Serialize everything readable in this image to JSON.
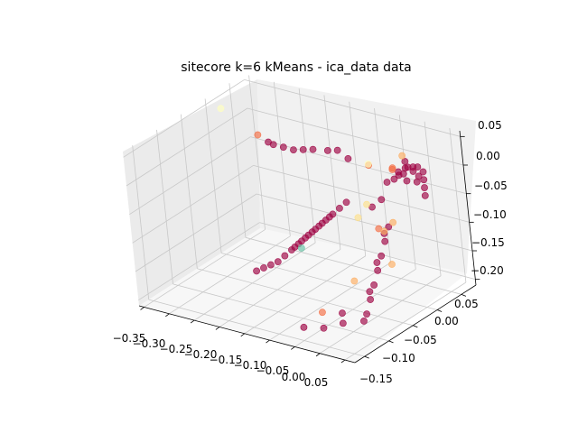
{
  "chart_data": {
    "type": "scatter",
    "title": "sitecore k=6 kMeans - ica_data data",
    "axes": {
      "x": {
        "ticks": [
          "−0.35",
          "−0.30",
          "−0.25",
          "−0.20",
          "−0.15",
          "−0.10",
          "−0.05",
          "0.00",
          "0.05"
        ],
        "range": [
          -0.36,
          0.07
        ]
      },
      "y": {
        "ticks": [
          "−0.15",
          "−0.10",
          "−0.05",
          "0.00",
          "0.05"
        ],
        "range": [
          -0.17,
          0.08
        ]
      },
      "z": {
        "ticks": [
          "−0.20",
          "−0.15",
          "−0.10",
          "−0.05",
          "0.00",
          "0.05"
        ],
        "range": [
          -0.21,
          0.06
        ]
      }
    },
    "grid": true,
    "projection": "3d",
    "colors": {
      "cluster_dark": "#9e0142",
      "cluster_orange": "#f46d43",
      "cluster_peach": "#fdae61",
      "cluster_yellow": "#fee08b",
      "cluster_pale": "#ffffbf",
      "cluster_teal": "#66c2a5"
    },
    "series": [
      {
        "cluster": 0,
        "color": "#9e0142",
        "points": [
          [
            -0.15,
            0.0,
            0.02
          ],
          [
            -0.17,
            0.0,
            0.015
          ],
          [
            -0.19,
            0.0,
            0.01
          ],
          [
            -0.21,
            0.0,
            0.01
          ],
          [
            -0.23,
            0.0,
            0.01
          ],
          [
            -0.24,
            0.0,
            0.012
          ],
          [
            -0.1,
            0.0,
            0.03
          ],
          [
            -0.12,
            0.0,
            0.025
          ],
          [
            -0.08,
            0.0,
            0.02
          ],
          [
            -0.04,
            -0.05,
            -0.02
          ],
          [
            -0.05,
            -0.055,
            -0.03
          ],
          [
            -0.06,
            -0.06,
            -0.04
          ],
          [
            -0.07,
            -0.065,
            -0.05
          ],
          [
            -0.08,
            -0.07,
            -0.06
          ],
          [
            -0.09,
            -0.075,
            -0.07
          ],
          [
            -0.1,
            -0.08,
            -0.08
          ],
          [
            -0.11,
            -0.085,
            -0.09
          ],
          [
            -0.12,
            -0.09,
            -0.1
          ],
          [
            -0.13,
            -0.095,
            -0.11
          ],
          [
            -0.14,
            -0.1,
            -0.12
          ],
          [
            -0.15,
            -0.105,
            -0.125
          ],
          [
            -0.16,
            -0.11,
            -0.13
          ],
          [
            -0.17,
            -0.115,
            -0.135
          ],
          [
            -0.065,
            -0.062,
            -0.045
          ],
          [
            -0.075,
            -0.068,
            -0.055
          ],
          [
            -0.085,
            -0.073,
            -0.065
          ],
          [
            -0.095,
            -0.078,
            -0.075
          ],
          [
            -0.105,
            -0.083,
            -0.085
          ],
          [
            -0.115,
            -0.088,
            -0.095
          ],
          [
            0.02,
            0.0,
            0.02
          ],
          [
            0.025,
            0.005,
            0.015
          ],
          [
            0.03,
            0.01,
            0.025
          ],
          [
            0.035,
            0.0,
            0.03
          ],
          [
            0.015,
            0.005,
            0.01
          ],
          [
            0.04,
            0.01,
            0.02
          ],
          [
            0.045,
            0.015,
            0.01
          ],
          [
            0.025,
            0.01,
            0.0
          ],
          [
            0.03,
            0.02,
            0.02
          ],
          [
            0.05,
            0.01,
            0.03
          ],
          [
            0.055,
            0.015,
            0.02
          ],
          [
            0.02,
            0.015,
            0.03
          ],
          [
            0.06,
            0.01,
            0.01
          ],
          [
            0.065,
            0.005,
            0.0
          ],
          [
            0.07,
            0.0,
            -0.01
          ],
          [
            0.035,
            0.02,
            -0.005
          ],
          [
            0.01,
            0.0,
            0.005
          ],
          [
            0.0,
            -0.005,
            0.0
          ],
          [
            0.02,
            -0.03,
            -0.06
          ],
          [
            0.02,
            -0.04,
            -0.08
          ],
          [
            0.02,
            -0.05,
            -0.1
          ],
          [
            0.02,
            -0.06,
            -0.12
          ],
          [
            0.02,
            -0.07,
            -0.14
          ],
          [
            0.02,
            -0.08,
            -0.16
          ],
          [
            0.02,
            -0.09,
            -0.18
          ],
          [
            0.015,
            -0.035,
            -0.07
          ],
          [
            0.015,
            -0.055,
            -0.11
          ],
          [
            0.015,
            -0.075,
            -0.15
          ],
          [
            0.018,
            -0.095,
            -0.19
          ],
          [
            -0.02,
            -0.1,
            -0.2
          ],
          [
            -0.05,
            -0.11,
            -0.21
          ],
          [
            -0.08,
            -0.12,
            -0.21
          ],
          [
            -0.03,
            -0.09,
            -0.19
          ],
          [
            -0.01,
            -0.01,
            -0.03
          ],
          [
            -0.02,
            -0.02,
            -0.04
          ]
        ]
      },
      {
        "cluster": 1,
        "color": "#f46d43",
        "points": [
          [
            -0.26,
            0.0,
            0.02
          ],
          [
            -0.05,
            0.01,
            0.01
          ],
          [
            -0.06,
            -0.1,
            -0.19
          ],
          [
            0.03,
            -0.02,
            0.04
          ],
          [
            0.04,
            -0.03,
            0.045
          ],
          [
            0.01,
            -0.04,
            -0.06
          ]
        ]
      },
      {
        "cluster": 2,
        "color": "#fdae61",
        "points": [
          [
            0.03,
            -0.03,
            -0.05
          ],
          [
            0.04,
            -0.05,
            -0.11
          ],
          [
            0.01,
            0.02,
            0.035
          ],
          [
            -0.03,
            -0.06,
            -0.15
          ],
          [
            0.01,
            -0.03,
            -0.07
          ]
        ]
      },
      {
        "cluster": 3,
        "color": "#fee08b",
        "points": [
          [
            -0.03,
            -0.04,
            -0.05
          ],
          [
            -0.02,
            -0.03,
            -0.03
          ]
        ]
      },
      {
        "cluster": 4,
        "color": "#ffffbf",
        "points": [
          [
            -0.33,
            0.0,
            0.05
          ],
          [
            -0.04,
            0.0,
            0.02
          ]
        ]
      },
      {
        "cluster": 5,
        "color": "#66c2a5",
        "points": [
          [
            -0.11,
            -0.08,
            -0.1
          ]
        ]
      }
    ]
  }
}
